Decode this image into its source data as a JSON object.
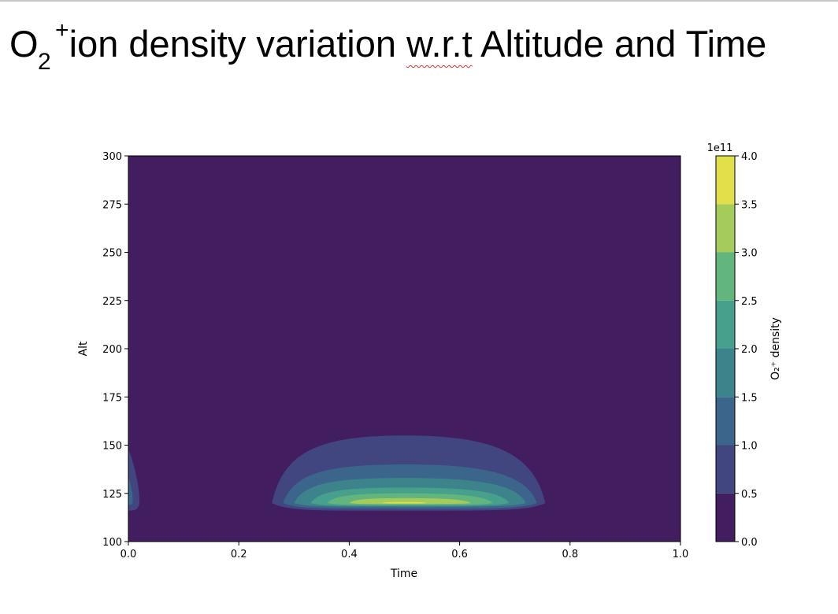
{
  "title": {
    "base": "O",
    "subscript": "2",
    "superscript": "+",
    "before_mark": " ion density variation ",
    "marked": "w.r.t",
    "after_mark": " Altitude and Time"
  },
  "chart_data": {
    "type": "heatmap",
    "subtype": "filled-contour",
    "xlabel": "Time",
    "ylabel": "Alt",
    "xlim": [
      0.0,
      1.0
    ],
    "ylim": [
      100,
      300
    ],
    "x_ticks": [
      "0.0",
      "0.2",
      "0.4",
      "0.6",
      "0.8",
      "1.0"
    ],
    "y_ticks": [
      "100",
      "125",
      "150",
      "175",
      "200",
      "225",
      "250",
      "275",
      "300"
    ],
    "colorbar": {
      "label": "O₂⁺ density",
      "multiplier": "1e11",
      "ticks": [
        "0.0",
        "0.5",
        "1.0",
        "1.5",
        "2.0",
        "2.5",
        "3.0",
        "3.5",
        "4.0"
      ],
      "levels": [
        0.0,
        0.5,
        1.0,
        1.5,
        2.0,
        2.5,
        3.0,
        3.5,
        4.0
      ],
      "colors": [
        "#440154",
        "#46327e",
        "#365c8d",
        "#277f8e",
        "#1fa187",
        "#4ac16d",
        "#a0da39",
        "#fde725"
      ],
      "rendered_colors": [
        "#421e61",
        "#414580",
        "#3b658a",
        "#3d838c",
        "#46a08c",
        "#63b57e",
        "#a5cc5b",
        "#e1e04b"
      ]
    },
    "features": [
      {
        "name": "midday-peak",
        "time_range": [
          0.26,
          0.755
        ],
        "center_time": 0.5,
        "peak_altitude": 120,
        "peak_value": 3.6,
        "contours": [
          {
            "level": 0.5,
            "time_range": [
              0.26,
              0.755
            ],
            "alt_top": 155,
            "alt_bottom": 116
          },
          {
            "level": 1.0,
            "time_range": [
              0.28,
              0.74
            ],
            "alt_top": 140,
            "alt_bottom": 117
          },
          {
            "level": 1.5,
            "time_range": [
              0.3,
              0.72
            ],
            "alt_top": 133,
            "alt_bottom": 118
          },
          {
            "level": 2.0,
            "time_range": [
              0.33,
              0.69
            ],
            "alt_top": 128,
            "alt_bottom": 118.5
          },
          {
            "level": 2.5,
            "time_range": [
              0.36,
              0.66
            ],
            "alt_top": 125,
            "alt_bottom": 119
          },
          {
            "level": 3.0,
            "time_range": [
              0.4,
              0.62
            ],
            "alt_top": 122.5,
            "alt_bottom": 119.5
          },
          {
            "level": 3.5,
            "time_range": [
              0.46,
              0.54
            ],
            "alt_top": 120.5,
            "alt_bottom": 119.8
          }
        ]
      },
      {
        "name": "start-edge",
        "time_range": [
          0.0,
          0.02
        ],
        "contours": [
          {
            "level": 0.5,
            "time_max": 0.02,
            "alt_top": 150,
            "alt_bottom": 116
          },
          {
            "level": 1.0,
            "time_max": 0.008,
            "alt_top": 135,
            "alt_bottom": 119
          }
        ]
      }
    ]
  }
}
